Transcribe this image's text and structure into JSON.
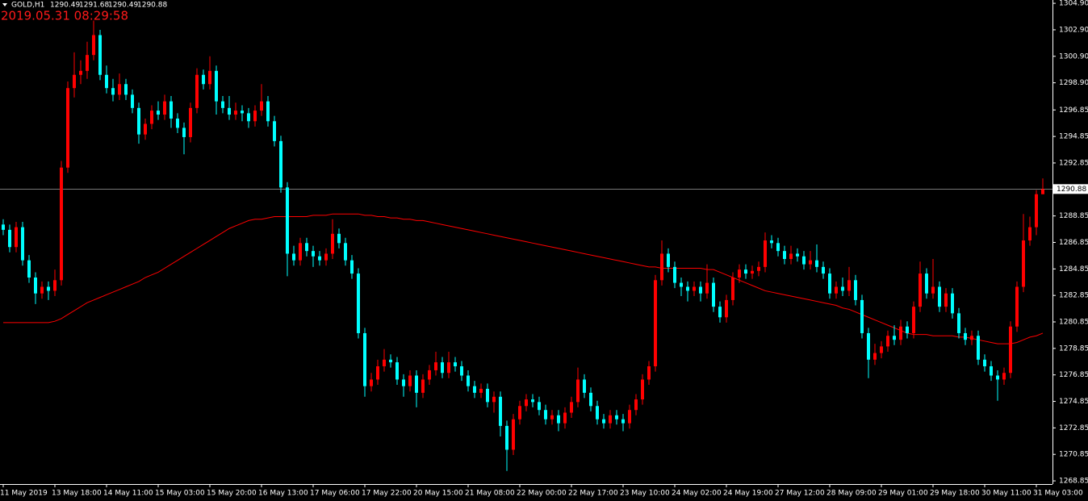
{
  "chart_data": {
    "type": "candlestick",
    "symbol": "GOLD,H1",
    "timestamp": "2019.05.31 08:29:58",
    "up_color": "#ff0000",
    "down_color": "#00ffff",
    "price_line_color": "#c0c0c0",
    "ylim": [
      1268.61,
      1305.15
    ],
    "yticks": [
      {
        "value": 1304.9,
        "label": "1304.90"
      },
      {
        "value": 1302.9,
        "label": "1302.90"
      },
      {
        "value": 1300.9,
        "label": "1300.90"
      },
      {
        "value": 1298.9,
        "label": "1298.90"
      },
      1296.85,
      1294.85,
      1292.85,
      1288.85,
      1286.85,
      1284.85,
      1282.85,
      1280.85,
      1278.85,
      1276.85,
      1274.85,
      1272.85,
      1270.85,
      1268.85
    ],
    "categories": [
      "11 May 2019",
      null,
      null,
      null,
      null,
      null,
      null,
      null,
      "13 May 18:00",
      null,
      null,
      null,
      null,
      null,
      null,
      null,
      "14 May 11:00",
      null,
      null,
      null,
      null,
      null,
      null,
      null,
      "15 May 03:00",
      null,
      null,
      null,
      null,
      null,
      null,
      null,
      "15 May 20:00",
      null,
      null,
      null,
      null,
      null,
      null,
      null,
      "16 May 13:00",
      null,
      null,
      null,
      null,
      null,
      null,
      null,
      "17 May 06:00",
      null,
      null,
      null,
      null,
      null,
      null,
      null,
      "17 May 22:00",
      null,
      null,
      null,
      null,
      null,
      null,
      null,
      "20 May 15:00",
      null,
      null,
      null,
      null,
      null,
      null,
      null,
      "21 May 08:00",
      null,
      null,
      null,
      null,
      null,
      null,
      null,
      "22 May 00:00",
      null,
      null,
      null,
      null,
      null,
      null,
      null,
      "22 May 17:00",
      null,
      null,
      null,
      null,
      null,
      null,
      null,
      "23 May 10:00",
      null,
      null,
      null,
      null,
      null,
      null,
      null,
      "24 May 02:00",
      null,
      null,
      null,
      null,
      null,
      null,
      null,
      "24 May 19:00",
      null,
      null,
      null,
      null,
      null,
      null,
      null,
      "27 May 12:00",
      null,
      null,
      null,
      null,
      null,
      null,
      null,
      "28 May 09:00",
      null,
      null,
      null,
      null,
      null,
      null,
      null,
      "29 May 01:00",
      null,
      null,
      null,
      null,
      null,
      null,
      null,
      "29 May 18:00",
      null,
      null,
      null,
      null,
      null,
      null,
      null,
      "30 May 11:00",
      null,
      null,
      null,
      null,
      null,
      null,
      null,
      "31 May 03:00",
      null
    ],
    "candles": [
      [
        1288.2,
        1288.6,
        1287.4,
        1287.8
      ],
      [
        1287.8,
        1288.2,
        1286.1,
        1286.5
      ],
      [
        1286.5,
        1288.4,
        1286.1,
        1288.0
      ],
      [
        1288.0,
        1288.4,
        1285.1,
        1285.5
      ],
      [
        1285.5,
        1285.9,
        1283.8,
        1284.2
      ],
      [
        1284.2,
        1284.6,
        1282.2,
        1283.0
      ],
      [
        1283.0,
        1283.9,
        1282.6,
        1283.5
      ],
      [
        1283.5,
        1283.9,
        1282.5,
        1283.2
      ],
      [
        1283.2,
        1284.8,
        1282.8,
        1284.0
      ],
      [
        1284.0,
        1293.0,
        1283.6,
        1292.5
      ],
      [
        1292.5,
        1299.0,
        1292.1,
        1298.5
      ],
      [
        1298.5,
        1301.2,
        1297.8,
        1299.5
      ],
      [
        1299.5,
        1300.6,
        1298.8,
        1299.8
      ],
      [
        1299.8,
        1302.0,
        1299.2,
        1301.0
      ],
      [
        1301.0,
        1303.6,
        1300.6,
        1302.5
      ],
      [
        1302.5,
        1302.9,
        1299.1,
        1299.5
      ],
      [
        1299.5,
        1300.2,
        1298.1,
        1298.5
      ],
      [
        1298.5,
        1299.2,
        1297.5,
        1298.0
      ],
      [
        1298.0,
        1299.6,
        1297.6,
        1298.8
      ],
      [
        1298.8,
        1299.2,
        1297.6,
        1298.0
      ],
      [
        1298.0,
        1298.4,
        1296.6,
        1297.0
      ],
      [
        1297.0,
        1297.4,
        1294.3,
        1295.0
      ],
      [
        1295.0,
        1296.2,
        1294.6,
        1295.8
      ],
      [
        1295.8,
        1297.2,
        1295.4,
        1296.8
      ],
      [
        1296.8,
        1297.5,
        1296.1,
        1296.5
      ],
      [
        1296.5,
        1298.0,
        1296.1,
        1297.5
      ],
      [
        1297.5,
        1297.9,
        1295.5,
        1296.2
      ],
      [
        1296.2,
        1296.6,
        1295.1,
        1295.5
      ],
      [
        1295.5,
        1295.9,
        1293.5,
        1294.8
      ],
      [
        1294.8,
        1297.4,
        1294.4,
        1297.0
      ],
      [
        1297.0,
        1300.0,
        1296.6,
        1299.5
      ],
      [
        1299.5,
        1299.9,
        1298.4,
        1298.8
      ],
      [
        1298.8,
        1300.9,
        1298.4,
        1299.8
      ],
      [
        1299.8,
        1300.2,
        1296.5,
        1297.5
      ],
      [
        1297.5,
        1297.9,
        1296.6,
        1297.0
      ],
      [
        1297.0,
        1297.9,
        1296.1,
        1296.5
      ],
      [
        1296.5,
        1297.4,
        1296.1,
        1296.8
      ],
      [
        1296.8,
        1297.2,
        1296.0,
        1296.6
      ],
      [
        1296.6,
        1297.0,
        1295.5,
        1296.0
      ],
      [
        1296.0,
        1297.2,
        1295.6,
        1296.8
      ],
      [
        1296.8,
        1298.8,
        1296.4,
        1297.5
      ],
      [
        1297.5,
        1297.9,
        1295.6,
        1296.0
      ],
      [
        1296.0,
        1296.4,
        1294.1,
        1294.5
      ],
      [
        1294.5,
        1294.9,
        1290.6,
        1291.0
      ],
      [
        1291.0,
        1291.4,
        1284.3,
        1286.0
      ],
      [
        1286.0,
        1286.6,
        1285.1,
        1285.5
      ],
      [
        1285.5,
        1287.2,
        1285.1,
        1286.8
      ],
      [
        1286.8,
        1287.2,
        1285.8,
        1286.2
      ],
      [
        1286.2,
        1286.6,
        1285.0,
        1285.8
      ],
      [
        1285.8,
        1286.2,
        1285.1,
        1285.5
      ],
      [
        1285.5,
        1286.4,
        1285.1,
        1286.0
      ],
      [
        1286.0,
        1288.6,
        1285.6,
        1287.5
      ],
      [
        1287.5,
        1287.9,
        1286.4,
        1286.8
      ],
      [
        1286.8,
        1287.2,
        1285.1,
        1285.5
      ],
      [
        1285.5,
        1285.9,
        1284.1,
        1284.5
      ],
      [
        1284.5,
        1284.9,
        1279.6,
        1280.0
      ],
      [
        1280.0,
        1280.4,
        1275.2,
        1276.0
      ],
      [
        1276.0,
        1277.0,
        1275.6,
        1276.5
      ],
      [
        1276.5,
        1278.0,
        1276.1,
        1277.5
      ],
      [
        1277.5,
        1278.8,
        1277.1,
        1278.0
      ],
      [
        1278.0,
        1278.4,
        1277.4,
        1277.8
      ],
      [
        1277.8,
        1278.2,
        1276.1,
        1276.5
      ],
      [
        1276.5,
        1276.9,
        1275.2,
        1276.0
      ],
      [
        1276.0,
        1277.2,
        1275.6,
        1276.8
      ],
      [
        1276.8,
        1277.2,
        1274.4,
        1275.5
      ],
      [
        1275.5,
        1276.9,
        1275.1,
        1276.5
      ],
      [
        1276.5,
        1277.6,
        1276.1,
        1277.2
      ],
      [
        1277.2,
        1278.6,
        1276.8,
        1277.8
      ],
      [
        1277.8,
        1278.2,
        1276.6,
        1277.0
      ],
      [
        1277.0,
        1278.6,
        1276.6,
        1277.8
      ],
      [
        1277.8,
        1278.2,
        1277.1,
        1277.5
      ],
      [
        1277.5,
        1277.9,
        1276.4,
        1276.8
      ],
      [
        1276.8,
        1277.2,
        1275.6,
        1276.0
      ],
      [
        1276.0,
        1276.4,
        1275.1,
        1275.5
      ],
      [
        1275.5,
        1276.2,
        1275.1,
        1275.8
      ],
      [
        1275.8,
        1276.2,
        1274.4,
        1274.8
      ],
      [
        1274.8,
        1275.6,
        1274.0,
        1275.2
      ],
      [
        1275.2,
        1275.6,
        1272.2,
        1273.0
      ],
      [
        1273.0,
        1273.4,
        1269.6,
        1271.2
      ],
      [
        1271.2,
        1273.9,
        1270.8,
        1273.5
      ],
      [
        1273.5,
        1274.9,
        1273.1,
        1274.5
      ],
      [
        1274.5,
        1275.4,
        1274.1,
        1275.0
      ],
      [
        1275.0,
        1275.4,
        1274.4,
        1274.8
      ],
      [
        1274.8,
        1275.2,
        1273.8,
        1274.2
      ],
      [
        1274.2,
        1274.6,
        1273.1,
        1273.5
      ],
      [
        1273.5,
        1274.2,
        1273.1,
        1273.8
      ],
      [
        1273.8,
        1274.2,
        1272.6,
        1273.2
      ],
      [
        1273.2,
        1274.4,
        1272.8,
        1274.0
      ],
      [
        1274.0,
        1275.2,
        1273.6,
        1274.8
      ],
      [
        1274.8,
        1277.4,
        1274.4,
        1276.5
      ],
      [
        1276.5,
        1276.9,
        1275.1,
        1275.5
      ],
      [
        1275.5,
        1275.9,
        1274.1,
        1274.5
      ],
      [
        1274.5,
        1274.9,
        1273.1,
        1273.5
      ],
      [
        1273.5,
        1273.9,
        1272.8,
        1273.2
      ],
      [
        1273.2,
        1274.2,
        1272.8,
        1273.8
      ],
      [
        1273.8,
        1274.2,
        1273.1,
        1273.5
      ],
      [
        1273.5,
        1273.9,
        1272.6,
        1273.2
      ],
      [
        1273.2,
        1274.6,
        1272.8,
        1274.2
      ],
      [
        1274.2,
        1275.4,
        1273.8,
        1275.0
      ],
      [
        1275.0,
        1276.9,
        1274.6,
        1276.5
      ],
      [
        1276.5,
        1277.9,
        1276.1,
        1277.5
      ],
      [
        1277.5,
        1284.4,
        1277.1,
        1284.0
      ],
      [
        1284.0,
        1287.0,
        1283.6,
        1286.0
      ],
      [
        1286.0,
        1286.4,
        1284.6,
        1285.0
      ],
      [
        1285.0,
        1285.4,
        1283.4,
        1283.8
      ],
      [
        1283.8,
        1284.2,
        1282.8,
        1283.5
      ],
      [
        1283.5,
        1283.9,
        1282.4,
        1283.2
      ],
      [
        1283.2,
        1283.9,
        1282.8,
        1283.5
      ],
      [
        1283.5,
        1283.9,
        1282.4,
        1283.0
      ],
      [
        1283.0,
        1285.2,
        1282.6,
        1283.8
      ],
      [
        1283.8,
        1284.2,
        1281.6,
        1282.0
      ],
      [
        1282.0,
        1282.4,
        1280.8,
        1281.2
      ],
      [
        1281.2,
        1282.9,
        1280.8,
        1282.5
      ],
      [
        1282.5,
        1284.6,
        1282.1,
        1284.2
      ],
      [
        1284.2,
        1285.2,
        1283.8,
        1284.8
      ],
      [
        1284.8,
        1285.2,
        1284.1,
        1284.5
      ],
      [
        1284.5,
        1285.1,
        1284.1,
        1284.7
      ],
      [
        1284.7,
        1285.4,
        1284.3,
        1285.0
      ],
      [
        1285.0,
        1287.6,
        1284.6,
        1287.0
      ],
      [
        1287.0,
        1287.4,
        1286.4,
        1286.8
      ],
      [
        1286.8,
        1287.2,
        1285.8,
        1286.2
      ],
      [
        1286.2,
        1286.6,
        1285.2,
        1285.6
      ],
      [
        1285.6,
        1286.6,
        1285.2,
        1286.0
      ],
      [
        1286.0,
        1286.4,
        1285.4,
        1285.8
      ],
      [
        1285.8,
        1286.2,
        1284.8,
        1285.2
      ],
      [
        1285.2,
        1286.2,
        1284.8,
        1285.5
      ],
      [
        1285.5,
        1286.7,
        1284.6,
        1285.0
      ],
      [
        1285.0,
        1285.4,
        1284.1,
        1284.5
      ],
      [
        1284.5,
        1284.9,
        1282.6,
        1283.0
      ],
      [
        1283.0,
        1283.9,
        1282.6,
        1283.5
      ],
      [
        1283.5,
        1284.2,
        1282.8,
        1283.2
      ],
      [
        1283.2,
        1285.0,
        1282.8,
        1284.0
      ],
      [
        1284.0,
        1284.4,
        1282.1,
        1282.5
      ],
      [
        1282.5,
        1282.9,
        1279.6,
        1280.0
      ],
      [
        1280.0,
        1280.4,
        1276.6,
        1278.0
      ],
      [
        1278.0,
        1279.2,
        1277.6,
        1278.5
      ],
      [
        1278.5,
        1279.4,
        1278.1,
        1279.0
      ],
      [
        1279.0,
        1280.2,
        1278.6,
        1279.8
      ],
      [
        1279.8,
        1280.6,
        1279.1,
        1279.5
      ],
      [
        1279.5,
        1281.0,
        1279.1,
        1280.5
      ],
      [
        1280.5,
        1280.9,
        1279.6,
        1280.0
      ],
      [
        1280.0,
        1282.4,
        1279.6,
        1282.0
      ],
      [
        1282.0,
        1285.4,
        1281.6,
        1284.5
      ],
      [
        1284.5,
        1284.9,
        1282.6,
        1283.0
      ],
      [
        1283.0,
        1285.6,
        1282.6,
        1283.5
      ],
      [
        1283.5,
        1283.9,
        1281.6,
        1282.0
      ],
      [
        1282.0,
        1283.4,
        1281.6,
        1283.0
      ],
      [
        1283.0,
        1283.4,
        1281.1,
        1281.5
      ],
      [
        1281.5,
        1281.9,
        1279.6,
        1280.0
      ],
      [
        1280.0,
        1280.4,
        1279.1,
        1279.5
      ],
      [
        1279.5,
        1280.2,
        1279.1,
        1279.8
      ],
      [
        1279.8,
        1280.2,
        1277.6,
        1278.0
      ],
      [
        1278.0,
        1278.4,
        1277.1,
        1277.5
      ],
      [
        1277.5,
        1277.9,
        1276.4,
        1276.8
      ],
      [
        1276.8,
        1277.2,
        1274.9,
        1276.5
      ],
      [
        1276.5,
        1277.4,
        1276.1,
        1277.0
      ],
      [
        1277.0,
        1280.9,
        1276.6,
        1280.5
      ],
      [
        1280.5,
        1283.9,
        1280.1,
        1283.5
      ],
      [
        1283.5,
        1289.0,
        1283.1,
        1287.0
      ],
      [
        1287.0,
        1288.8,
        1286.6,
        1288.0
      ],
      [
        1288.0,
        1290.8,
        1287.4,
        1290.49
      ],
      [
        1290.49,
        1291.68,
        1290.49,
        1290.88
      ]
    ],
    "ma": {
      "color": "#ff0000",
      "values": [
        1280.8,
        1280.8,
        1280.8,
        1280.8,
        1280.8,
        1280.8,
        1280.8,
        1280.8,
        1280.9,
        1281.1,
        1281.4,
        1281.7,
        1282.0,
        1282.3,
        1282.5,
        1282.7,
        1282.9,
        1283.1,
        1283.3,
        1283.5,
        1283.7,
        1283.9,
        1284.2,
        1284.4,
        1284.6,
        1284.9,
        1285.2,
        1285.5,
        1285.8,
        1286.1,
        1286.4,
        1286.7,
        1287.0,
        1287.3,
        1287.6,
        1287.9,
        1288.1,
        1288.3,
        1288.5,
        1288.6,
        1288.6,
        1288.7,
        1288.8,
        1288.8,
        1288.8,
        1288.8,
        1288.8,
        1288.8,
        1288.9,
        1288.9,
        1288.9,
        1289.0,
        1289.0,
        1289.0,
        1289.0,
        1289.0,
        1288.9,
        1288.9,
        1288.8,
        1288.8,
        1288.7,
        1288.7,
        1288.6,
        1288.6,
        1288.5,
        1288.5,
        1288.4,
        1288.3,
        1288.2,
        1288.1,
        1288.0,
        1287.9,
        1287.8,
        1287.7,
        1287.6,
        1287.5,
        1287.4,
        1287.3,
        1287.2,
        1287.1,
        1287.0,
        1286.9,
        1286.8,
        1286.7,
        1286.6,
        1286.5,
        1286.4,
        1286.3,
        1286.2,
        1286.1,
        1286.0,
        1285.9,
        1285.8,
        1285.7,
        1285.6,
        1285.5,
        1285.4,
        1285.3,
        1285.2,
        1285.1,
        1285.0,
        1285.0,
        1284.9,
        1284.9,
        1284.9,
        1284.9,
        1284.9,
        1284.9,
        1284.9,
        1284.8,
        1284.8,
        1284.6,
        1284.4,
        1284.2,
        1284.0,
        1283.8,
        1283.6,
        1283.4,
        1283.2,
        1283.1,
        1283.0,
        1282.9,
        1282.8,
        1282.7,
        1282.6,
        1282.5,
        1282.4,
        1282.3,
        1282.2,
        1282.1,
        1281.9,
        1281.8,
        1281.6,
        1281.4,
        1281.2,
        1281.0,
        1280.8,
        1280.6,
        1280.4,
        1280.2,
        1280.0,
        1279.9,
        1279.9,
        1279.9,
        1279.8,
        1279.8,
        1279.8,
        1279.8,
        1279.7,
        1279.7,
        1279.6,
        1279.5,
        1279.4,
        1279.3,
        1279.2,
        1279.2,
        1279.2,
        1279.3,
        1279.5,
        1279.7,
        1279.8,
        1280.0
      ]
    }
  }
}
